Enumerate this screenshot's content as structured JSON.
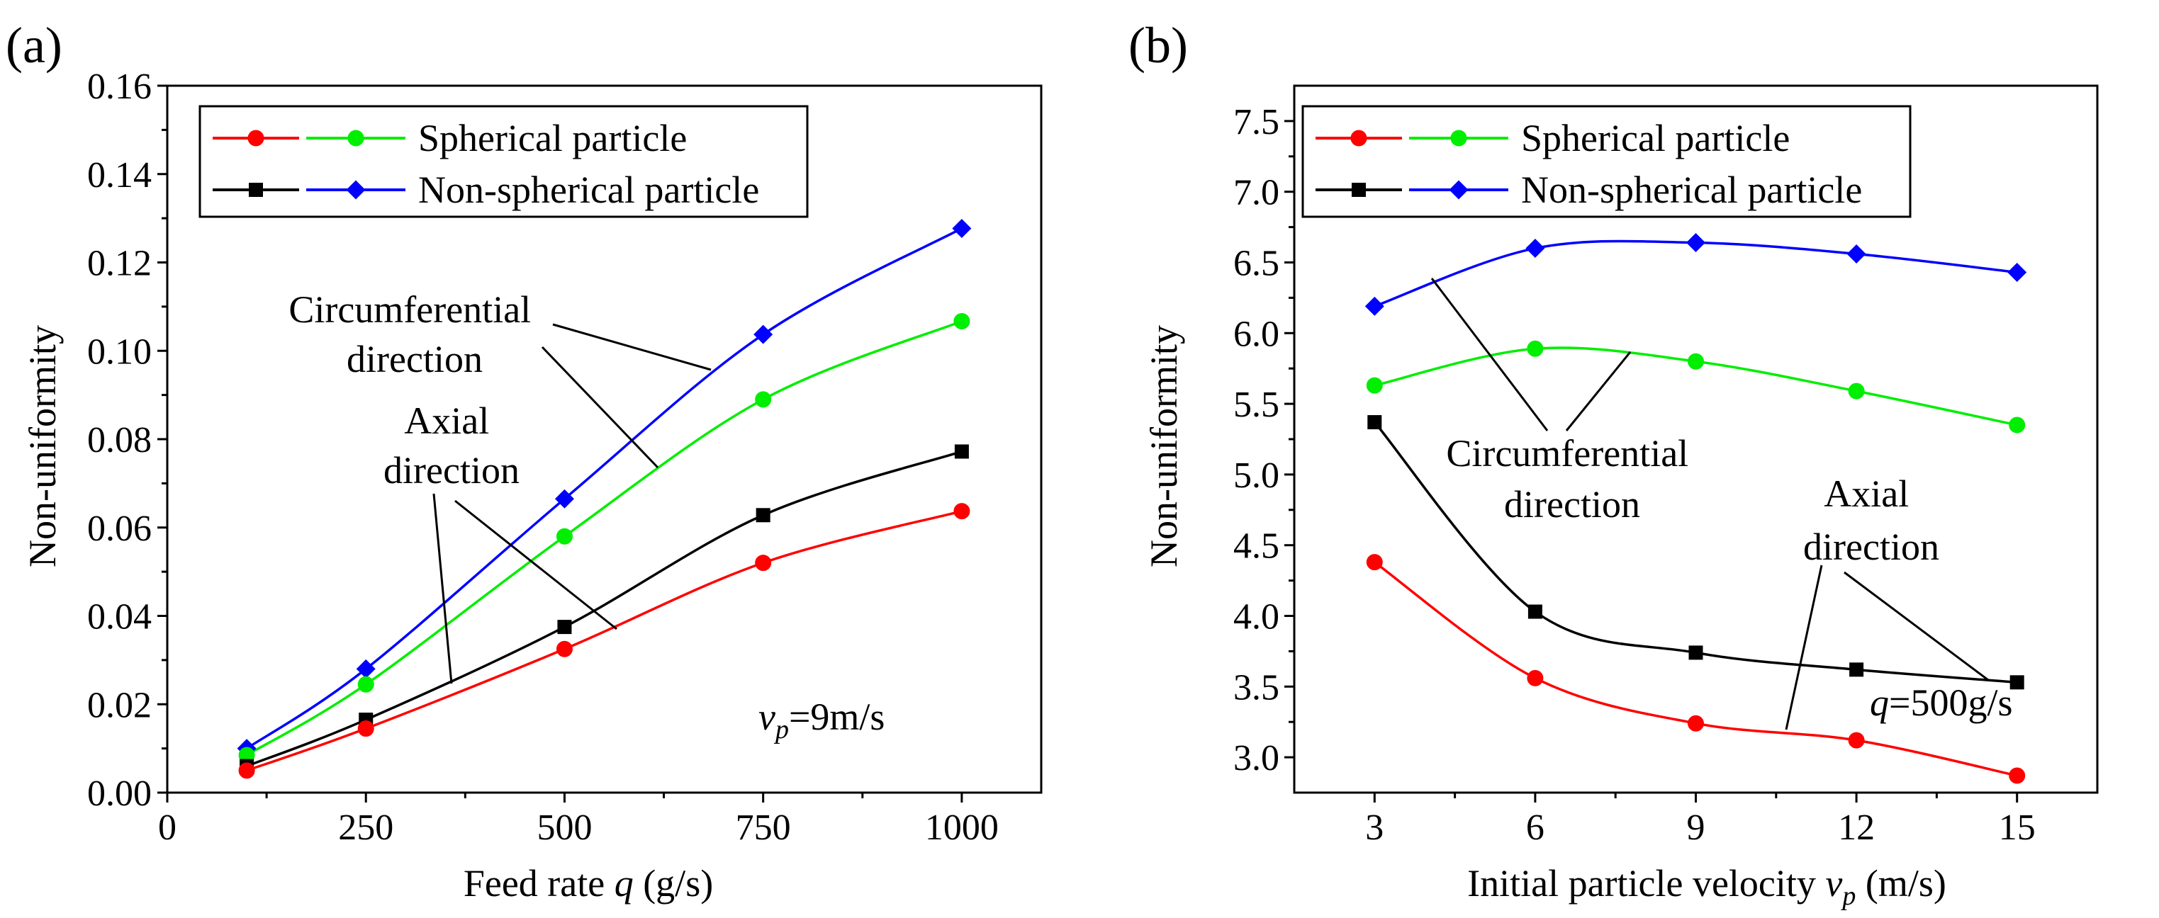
{
  "chart_data": [
    {
      "type": "line",
      "panel_label": "(a)",
      "xlabel_text": "Feed rate ",
      "xlabel_var": "q",
      "xlabel_unit": " (g/s)",
      "ylabel": "Non-uniformity",
      "xlim": [
        0,
        1100
      ],
      "ylim": [
        0,
        0.16
      ],
      "x_ticks": [
        0,
        250,
        500,
        750,
        1000
      ],
      "y_ticks": [
        0.0,
        0.02,
        0.04,
        0.06,
        0.08,
        0.1,
        0.12,
        0.14,
        0.16
      ],
      "y_tick_labels": [
        "0.00",
        "0.02",
        "0.04",
        "0.06",
        "0.08",
        "0.10",
        "0.12",
        "0.14",
        "0.16"
      ],
      "x": [
        100,
        250,
        500,
        750,
        1000
      ],
      "series": [
        {
          "name": "Non-spherical particle, circumferential",
          "color": "#0000ff",
          "marker": "diamond",
          "values": [
            0.01,
            0.028,
            0.0665,
            0.1037,
            0.1277
          ]
        },
        {
          "name": "Spherical particle, circumferential",
          "color": "#00ee00",
          "marker": "circle",
          "values": [
            0.0085,
            0.0245,
            0.058,
            0.089,
            0.1067
          ]
        },
        {
          "name": "Non-spherical particle, axial",
          "color": "#000000",
          "marker": "square",
          "values": [
            0.006,
            0.0165,
            0.0375,
            0.0628,
            0.0772
          ]
        },
        {
          "name": "Spherical particle, axial",
          "color": "#ff0000",
          "marker": "circle",
          "values": [
            0.005,
            0.0145,
            0.0325,
            0.052,
            0.0637
          ]
        }
      ],
      "legend": [
        {
          "label": "Spherical particle",
          "colors": [
            "#ff0000",
            "#00ee00"
          ],
          "markers": [
            "circle",
            "circle"
          ]
        },
        {
          "label": "Non-spherical particle",
          "colors": [
            "#000000",
            "#0000ff"
          ],
          "markers": [
            "square",
            "diamond"
          ]
        }
      ],
      "annotations": {
        "circumferential": [
          "Circumferential",
          "direction"
        ],
        "axial": [
          "Axial",
          "direction"
        ],
        "condition_var": "v",
        "condition_sub": "p",
        "condition_value": "=9m/s"
      }
    },
    {
      "type": "line",
      "panel_label": "(b)",
      "xlabel_text": "Initial particle velocity ",
      "xlabel_var": "v",
      "xlabel_sub": "p",
      "xlabel_unit": " (m/s)",
      "ylabel": "Non-uniformity",
      "xlim": [
        1.5,
        16.5
      ],
      "ylim": [
        2.75,
        7.75
      ],
      "x_ticks": [
        3,
        6,
        9,
        12,
        15
      ],
      "y_ticks": [
        3.0,
        3.5,
        4.0,
        4.5,
        5.0,
        5.5,
        6.0,
        6.5,
        7.0,
        7.5
      ],
      "y_tick_labels": [
        "3.0",
        "3.5",
        "4.0",
        "4.5",
        "5.0",
        "5.5",
        "6.0",
        "6.5",
        "7.0",
        "7.5"
      ],
      "x": [
        3,
        6,
        9,
        12,
        15
      ],
      "series": [
        {
          "name": "Non-spherical particle, circumferential",
          "color": "#0000ff",
          "marker": "diamond",
          "values": [
            6.19,
            6.6,
            6.64,
            6.56,
            6.43
          ]
        },
        {
          "name": "Spherical particle, circumferential",
          "color": "#00ee00",
          "marker": "circle",
          "values": [
            5.63,
            5.89,
            5.8,
            5.59,
            5.35
          ]
        },
        {
          "name": "Non-spherical particle, axial",
          "color": "#000000",
          "marker": "square",
          "values": [
            5.37,
            4.03,
            3.74,
            3.62,
            3.53
          ]
        },
        {
          "name": "Spherical particle, axial",
          "color": "#ff0000",
          "marker": "circle",
          "values": [
            4.38,
            3.56,
            3.24,
            3.12,
            2.87
          ]
        }
      ],
      "legend": [
        {
          "label": "Spherical particle",
          "colors": [
            "#ff0000",
            "#00ee00"
          ],
          "markers": [
            "circle",
            "circle"
          ]
        },
        {
          "label": "Non-spherical particle",
          "colors": [
            "#000000",
            "#0000ff"
          ],
          "markers": [
            "square",
            "diamond"
          ]
        }
      ],
      "annotations": {
        "circumferential": [
          "Circumferential",
          "direction"
        ],
        "axial": [
          "Axial",
          "direction"
        ],
        "condition_var": "q",
        "condition_value": "=500g/s"
      }
    }
  ]
}
